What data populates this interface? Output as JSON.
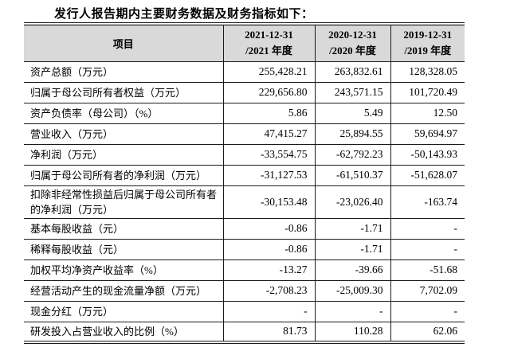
{
  "page": {
    "title": "发行人报告期内主要财务数据及财务指标如下："
  },
  "colors": {
    "header_bg": "#d9d9d9",
    "grid_line": "#1a1a1a",
    "text": "#000000",
    "page_bg": "#ffffff"
  },
  "table": {
    "header": {
      "item_label": "项目",
      "periods": [
        {
          "line1": "2021-12-31",
          "line2": "/2021 年度"
        },
        {
          "line1": "2020-12-31",
          "line2": "/2020 年度"
        },
        {
          "line1": "2019-12-31",
          "line2": "/2019 年度"
        }
      ]
    },
    "rows": [
      {
        "label": "资产总额（万元）",
        "values": [
          "255,428.21",
          "263,832.61",
          "128,328.05"
        ]
      },
      {
        "label": "归属于母公司所有者权益（万元）",
        "values": [
          "229,656.80",
          "243,571.15",
          "101,720.49"
        ]
      },
      {
        "label": "资产负债率（母公司）（%）",
        "values": [
          "5.86",
          "5.49",
          "12.50"
        ]
      },
      {
        "label": "营业收入（万元）",
        "values": [
          "47,415.27",
          "25,894.55",
          "59,694.97"
        ]
      },
      {
        "label": "净利润（万元）",
        "values": [
          "-33,554.75",
          "-62,792.23",
          "-50,143.93"
        ]
      },
      {
        "label": "归属于母公司所有者的净利润（万元）",
        "values": [
          "-31,127.53",
          "-61,510.37",
          "-51,628.07"
        ]
      },
      {
        "label": "扣除非经常性损益后归属于母公司所有者的净利润（万元）",
        "values": [
          "-30,153.48",
          "-23,026.40",
          "-163.74"
        ],
        "tall": true
      },
      {
        "label": "基本每股收益（元）",
        "values": [
          "-0.86",
          "-1.71",
          "-"
        ]
      },
      {
        "label": "稀释每股收益（元）",
        "values": [
          "-0.86",
          "-1.71",
          "-"
        ]
      },
      {
        "label": "加权平均净资产收益率（%）",
        "values": [
          "-13.27",
          "-39.66",
          "-51.68"
        ]
      },
      {
        "label": "经营活动产生的现金流量净额（万元）",
        "values": [
          "-2,708.23",
          "-25,009.30",
          "7,702.09"
        ]
      },
      {
        "label": "现金分红（万元）",
        "values": [
          "-",
          "-",
          "-"
        ]
      },
      {
        "label": "研发投入占营业收入的比例（%）",
        "values": [
          "81.73",
          "110.28",
          "62.06"
        ]
      }
    ]
  }
}
